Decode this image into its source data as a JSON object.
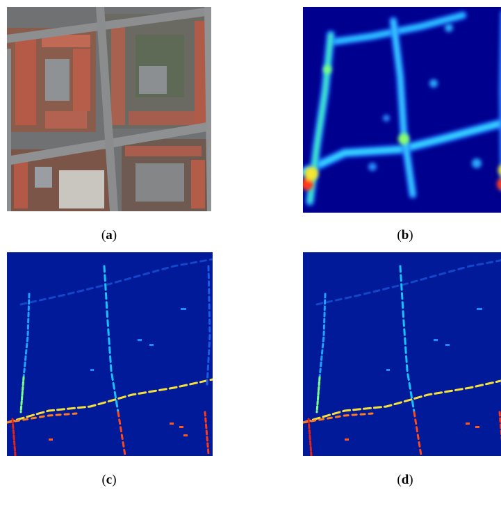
{
  "panels": [
    {
      "id": "a",
      "letter": "a",
      "kind": "aerial-photo"
    },
    {
      "id": "b",
      "letter": "b",
      "kind": "density-heatmap"
    },
    {
      "id": "c",
      "letter": "c",
      "kind": "vehicle-detections"
    },
    {
      "id": "d",
      "letter": "d",
      "kind": "vehicle-detections"
    }
  ],
  "colors": {
    "heatmap_background": "#00008f",
    "detection_background": "#001a99",
    "roof_red": "#b55a46",
    "road_gray": "#8a8c8e"
  }
}
